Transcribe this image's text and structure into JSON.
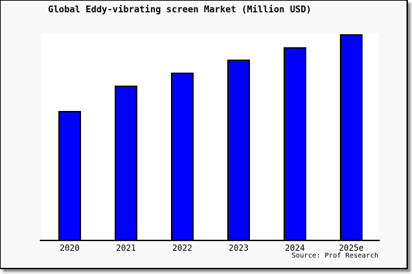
{
  "chart_data": {
    "type": "bar",
    "title": "Global Eddy-vibrating screen Market (Million USD)",
    "categories": [
      "2020",
      "2021",
      "2022",
      "2023",
      "2024",
      "2025e"
    ],
    "values_percent_of_max": [
      62.7,
      75.0,
      81.5,
      87.7,
      93.7,
      100.0
    ],
    "unit": "Million USD",
    "xlabel": "",
    "ylabel": "",
    "y_axis_tick_labels_visible": false,
    "grid": false,
    "legend": false,
    "source": "Source: Prof Research",
    "colors": {
      "bar_fill": "#0000ff",
      "bar_border": "#000000",
      "axis": "#000000",
      "plot_background": "#ffffff",
      "frame_background": "#f9f9f9",
      "frame_border": "#000000"
    }
  }
}
